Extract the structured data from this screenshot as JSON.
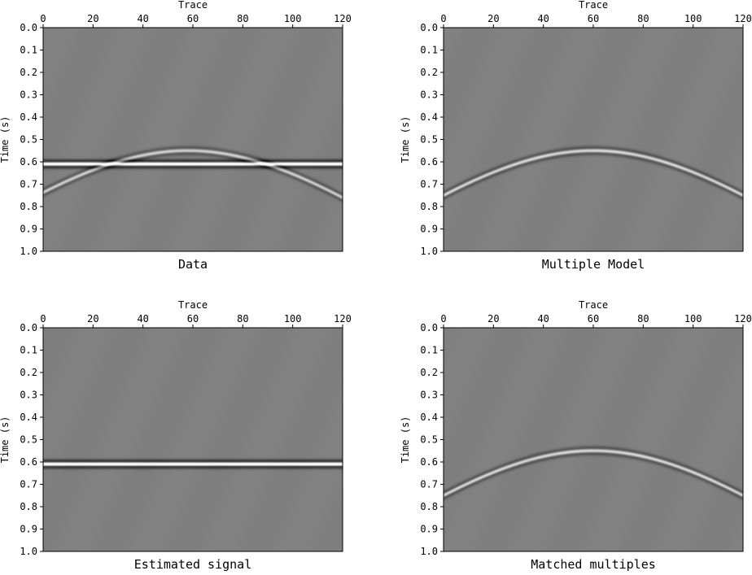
{
  "chart_data": [
    {
      "type": "heatmap",
      "title": "Data",
      "xlabel": "Trace",
      "ylabel": "Time (s)",
      "xlim": [
        0,
        120
      ],
      "ylim": [
        0.0,
        1.0
      ],
      "x_ticks": [
        "0",
        "20",
        "40",
        "60",
        "80",
        "100",
        "120"
      ],
      "y_ticks": [
        "0.0",
        "0.1",
        "0.2",
        "0.3",
        "0.4",
        "0.5",
        "0.6",
        "0.7",
        "0.8",
        "0.9",
        "1.0"
      ],
      "events": [
        {
          "kind": "flat",
          "t0": 0.61,
          "amplitude": 1.0
        },
        {
          "kind": "hyperbola",
          "apex_trace": 58,
          "apex_time": 0.55,
          "edge_time": 0.76,
          "amplitude": 0.5
        }
      ]
    },
    {
      "type": "heatmap",
      "title": "Multiple Model",
      "xlabel": "Trace",
      "ylabel": "Time (s)",
      "xlim": [
        0,
        120
      ],
      "ylim": [
        0.0,
        1.0
      ],
      "x_ticks": [
        "0",
        "20",
        "40",
        "60",
        "80",
        "100",
        "120"
      ],
      "y_ticks": [
        "0.0",
        "0.1",
        "0.2",
        "0.3",
        "0.4",
        "0.5",
        "0.6",
        "0.7",
        "0.8",
        "0.9",
        "1.0"
      ],
      "events": [
        {
          "kind": "hyperbola",
          "apex_trace": 60,
          "apex_time": 0.55,
          "edge_time": 0.75,
          "amplitude": 0.55
        }
      ]
    },
    {
      "type": "heatmap",
      "title": "Estimated signal",
      "xlabel": "Trace",
      "ylabel": "Time (s)",
      "xlim": [
        0,
        120
      ],
      "ylim": [
        0.0,
        1.0
      ],
      "x_ticks": [
        "0",
        "20",
        "40",
        "60",
        "80",
        "100",
        "120"
      ],
      "y_ticks": [
        "0.0",
        "0.1",
        "0.2",
        "0.3",
        "0.4",
        "0.5",
        "0.6",
        "0.7",
        "0.8",
        "0.9",
        "1.0"
      ],
      "events": [
        {
          "kind": "flat",
          "t0": 0.61,
          "amplitude": 1.0
        }
      ]
    },
    {
      "type": "heatmap",
      "title": "Matched multiples",
      "xlabel": "Trace",
      "ylabel": "Time (s)",
      "xlim": [
        0,
        120
      ],
      "ylim": [
        0.0,
        1.0
      ],
      "x_ticks": [
        "0",
        "20",
        "40",
        "60",
        "80",
        "100",
        "120"
      ],
      "y_ticks": [
        "0.0",
        "0.1",
        "0.2",
        "0.3",
        "0.4",
        "0.5",
        "0.6",
        "0.7",
        "0.8",
        "0.9",
        "1.0"
      ],
      "events": [
        {
          "kind": "hyperbola",
          "apex_trace": 60,
          "apex_time": 0.55,
          "edge_time": 0.75,
          "amplitude": 0.55
        }
      ]
    }
  ]
}
